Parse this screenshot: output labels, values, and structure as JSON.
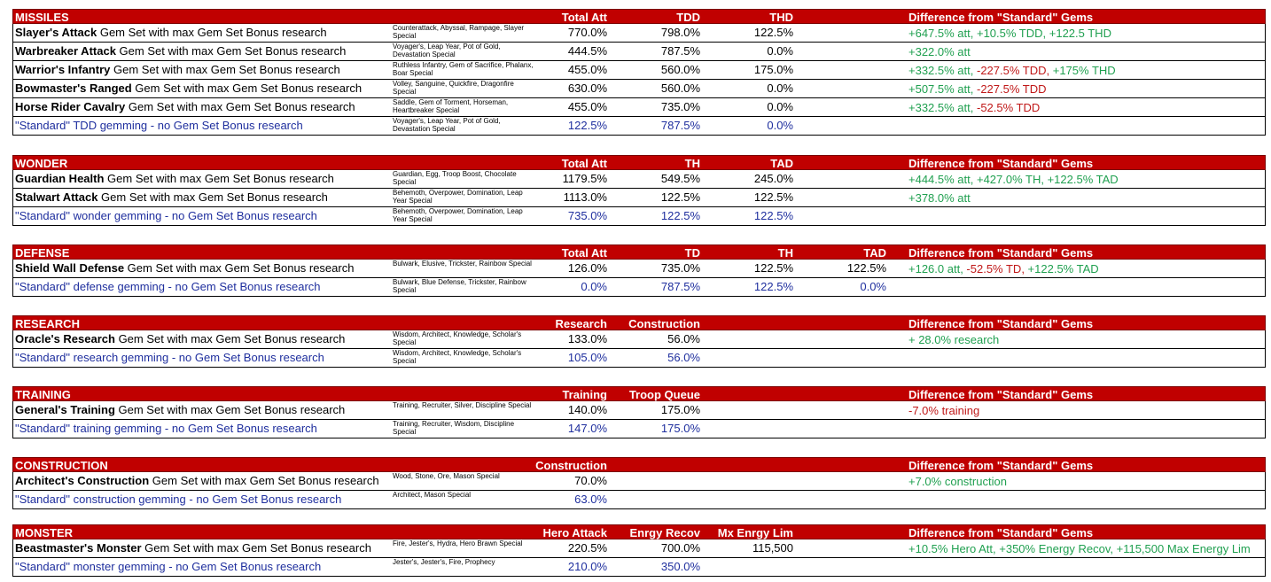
{
  "colors": {
    "header_bg": "#c00000",
    "standard_text": "#1f2f9e",
    "positive": "#20a050",
    "negative": "#c01818"
  },
  "diff_header": "Difference from \"Standard\" Gems",
  "sections": [
    {
      "title": "MISSILES",
      "columns": [
        "Total Att",
        "TDD",
        "THD"
      ],
      "rows": [
        {
          "bold": "Slayer's Attack",
          "rest": " Gem Set with max Gem Set Bonus research",
          "gems": "Counterattack, Abyssal, Rampage, Slayer Special",
          "vals": [
            "770.0%",
            "798.0%",
            "122.5%"
          ],
          "diff": [
            {
              "t": "+647.5% att, +10.5% TDD, +122.5 THD",
              "c": "green"
            }
          ]
        },
        {
          "bold": "Warbreaker Attack",
          "rest": " Gem Set with max Gem Set Bonus research",
          "gems": "Voyager's, Leap Year, Pot of Gold, Devastation Special",
          "vals": [
            "444.5%",
            "787.5%",
            "0.0%"
          ],
          "diff": [
            {
              "t": "+322.0% att",
              "c": "green"
            }
          ]
        },
        {
          "bold": "Warrior's Infantry",
          "rest": " Gem Set with max Gem Set Bonus research",
          "gems": "Ruthless Infantry, Gem of Sacrifice, Phalanx, Boar Special",
          "vals": [
            "455.0%",
            "560.0%",
            "175.0%"
          ],
          "diff": [
            {
              "t": "+332.5% att, ",
              "c": "green"
            },
            {
              "t": "-227.5% TDD, ",
              "c": "red"
            },
            {
              "t": "+175% THD",
              "c": "green"
            }
          ]
        },
        {
          "bold": "Bowmaster's Ranged",
          "rest": " Gem Set with max Gem Set Bonus research",
          "gems": "Volley, Sanguine, Quickfire, Dragonfire Special",
          "vals": [
            "630.0%",
            "560.0%",
            "0.0%"
          ],
          "diff": [
            {
              "t": "+507.5% att, ",
              "c": "green"
            },
            {
              "t": "-227.5% TDD",
              "c": "red"
            }
          ]
        },
        {
          "bold": "Horse Rider Cavalry",
          "rest": " Gem Set with max Gem Set Bonus research",
          "gems": "Saddle, Gem of Torment, Horseman, Heartbreaker Special",
          "vals": [
            "455.0%",
            "735.0%",
            "0.0%"
          ],
          "diff": [
            {
              "t": "+332.5% att, ",
              "c": "green"
            },
            {
              "t": "-52.5% TDD",
              "c": "red"
            }
          ]
        },
        {
          "std": true,
          "bold": "",
          "rest": "\"Standard\" TDD gemming - no Gem Set Bonus research",
          "gems": "Voyager's, Leap Year, Pot of Gold, Devastation Special",
          "vals": [
            "122.5%",
            "787.5%",
            "0.0%"
          ],
          "diff": []
        }
      ]
    },
    {
      "title": "WONDER",
      "columns": [
        "Total Att",
        "TH",
        "TAD"
      ],
      "rows": [
        {
          "bold": "Guardian Health",
          "rest": " Gem Set with max Gem Set Bonus research",
          "gems": "Guardian, Egg, Troop Boost, Chocolate Special",
          "vals": [
            "1179.5%",
            "549.5%",
            "245.0%"
          ],
          "diff": [
            {
              "t": "+444.5% att, +427.0% TH, +122.5% TAD",
              "c": "green"
            }
          ]
        },
        {
          "bold": "Stalwart Attack",
          "rest": " Gem Set with max Gem Set Bonus research",
          "gems": "Behemoth, Overpower, Domination, Leap Year Special",
          "vals": [
            "1113.0%",
            "122.5%",
            "122.5%"
          ],
          "diff": [
            {
              "t": "+378.0% att",
              "c": "green"
            }
          ]
        },
        {
          "std": true,
          "bold": "",
          "rest": "\"Standard\" wonder gemming - no Gem Set Bonus research",
          "gems": "Behemoth, Overpower, Domination, Leap Year Special",
          "vals": [
            "735.0%",
            "122.5%",
            "122.5%"
          ],
          "diff": []
        }
      ]
    },
    {
      "title": "DEFENSE",
      "columns": [
        "Total Att",
        "TD",
        "TH",
        "TAD"
      ],
      "rows": [
        {
          "bold": "Shield Wall Defense",
          "rest": " Gem Set with max Gem Set Bonus research",
          "gems": "Bulwark, Elusive, Trickster, Rainbow Special",
          "vals": [
            "126.0%",
            "735.0%",
            "122.5%",
            "122.5%"
          ],
          "diff": [
            {
              "t": "+126.0 att, ",
              "c": "green"
            },
            {
              "t": "-52.5% TD, ",
              "c": "red"
            },
            {
              "t": "+122.5% TAD",
              "c": "green"
            }
          ]
        },
        {
          "std": true,
          "bold": "",
          "rest": "\"Standard\" defense gemming - no Gem Set Bonus research",
          "gems": "Bulwark, Blue Defense, Trickster, Rainbow Special",
          "vals": [
            "0.0%",
            "787.5%",
            "122.5%",
            "0.0%"
          ],
          "diff": []
        }
      ]
    },
    {
      "title": "RESEARCH",
      "columns": [
        "Research",
        "Construction"
      ],
      "rows": [
        {
          "bold": "Oracle's Research",
          "rest": " Gem Set with max Gem Set Bonus research",
          "gems": "Wisdom, Architect, Knowledge, Scholar's Special",
          "vals": [
            "133.0%",
            "56.0%"
          ],
          "diff": [
            {
              "t": "+ 28.0% research",
              "c": "green"
            }
          ]
        },
        {
          "std": true,
          "bold": "",
          "rest": "\"Standard\" research gemming - no Gem Set Bonus research",
          "gems": "Wisdom, Architect, Knowledge, Scholar's Special",
          "vals": [
            "105.0%",
            "56.0%"
          ],
          "diff": []
        }
      ]
    },
    {
      "title": "TRAINING",
      "columns": [
        "Training",
        "Troop Queue"
      ],
      "rows": [
        {
          "bold": "General's Training",
          "rest": " Gem Set with max Gem Set Bonus research",
          "gems": "Training, Recruiter, Silver, Discipline Special",
          "vals": [
            "140.0%",
            "175.0%"
          ],
          "diff": [
            {
              "t": "-7.0% training",
              "c": "red"
            }
          ]
        },
        {
          "std": true,
          "bold": "",
          "rest": "\"Standard\" training gemming - no Gem Set Bonus research",
          "gems": "Training, Recruiter, Wisdom, Discipline Special",
          "vals": [
            "147.0%",
            "175.0%"
          ],
          "diff": []
        }
      ]
    },
    {
      "title": "CONSTRUCTION",
      "columns": [
        "Construction"
      ],
      "rows": [
        {
          "bold": "Architect's Construction",
          "rest": " Gem Set with max Gem Set Bonus research",
          "gems": "Wood, Stone, Ore, Mason Special",
          "vals": [
            "70.0%"
          ],
          "diff": [
            {
              "t": "+7.0% construction",
              "c": "green"
            }
          ]
        },
        {
          "std": true,
          "bold": "",
          "rest": "\"Standard\" construction gemming - no Gem Set Bonus research",
          "gems": "Architect, Mason Special",
          "vals": [
            "63.0%"
          ],
          "diff": []
        }
      ]
    },
    {
      "title": "MONSTER",
      "columns": [
        "Hero Attack",
        "Enrgy Recov",
        "Mx Enrgy Lim"
      ],
      "rows": [
        {
          "bold": "Beastmaster's Monster",
          "rest": " Gem Set with max Gem Set Bonus research",
          "gems": "Fire, Jester's, Hydra, Hero Brawn Special",
          "vals": [
            "220.5%",
            "700.0%",
            "115,500"
          ],
          "diff": [
            {
              "t": "+10.5% Hero Att, +350% Energy Recov, +115,500 Max Energy Lim",
              "c": "green"
            }
          ]
        },
        {
          "std": true,
          "bold": "",
          "rest": "\"Standard\" monster gemming - no Gem Set Bonus research",
          "gems": "Jester's, Jester's, Fire, Prophecy",
          "vals": [
            "210.0%",
            "350.0%"
          ],
          "diff": []
        }
      ]
    }
  ]
}
